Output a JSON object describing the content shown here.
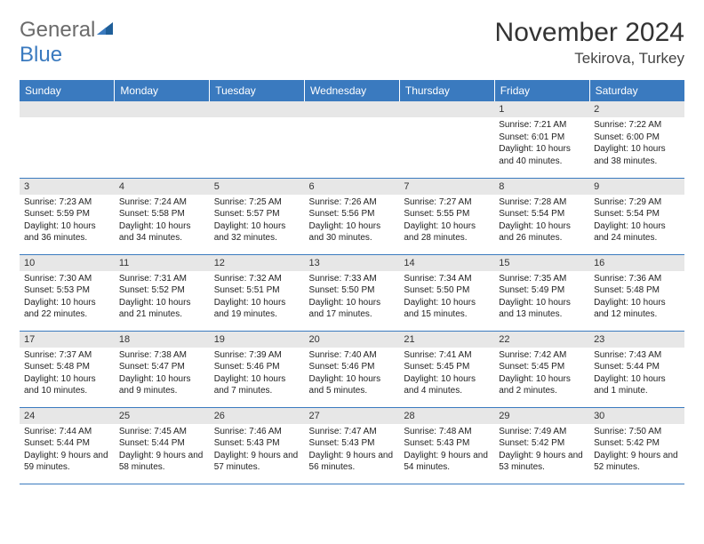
{
  "logo": {
    "word1": "General",
    "word2": "Blue",
    "color1": "#6b6b6b",
    "color2": "#3a7abf"
  },
  "title": "November 2024",
  "subtitle": "Tekirova, Turkey",
  "calendar": {
    "type": "table",
    "header_bg": "#3a7abf",
    "header_fg": "#ffffff",
    "daynum_bg": "#e7e7e7",
    "border_color": "#3a7abf",
    "columns": [
      "Sunday",
      "Monday",
      "Tuesday",
      "Wednesday",
      "Thursday",
      "Friday",
      "Saturday"
    ],
    "weeks": [
      [
        null,
        null,
        null,
        null,
        null,
        {
          "n": "1",
          "sunrise": "Sunrise: 7:21 AM",
          "sunset": "Sunset: 6:01 PM",
          "daylight": "Daylight: 10 hours and 40 minutes."
        },
        {
          "n": "2",
          "sunrise": "Sunrise: 7:22 AM",
          "sunset": "Sunset: 6:00 PM",
          "daylight": "Daylight: 10 hours and 38 minutes."
        }
      ],
      [
        {
          "n": "3",
          "sunrise": "Sunrise: 7:23 AM",
          "sunset": "Sunset: 5:59 PM",
          "daylight": "Daylight: 10 hours and 36 minutes."
        },
        {
          "n": "4",
          "sunrise": "Sunrise: 7:24 AM",
          "sunset": "Sunset: 5:58 PM",
          "daylight": "Daylight: 10 hours and 34 minutes."
        },
        {
          "n": "5",
          "sunrise": "Sunrise: 7:25 AM",
          "sunset": "Sunset: 5:57 PM",
          "daylight": "Daylight: 10 hours and 32 minutes."
        },
        {
          "n": "6",
          "sunrise": "Sunrise: 7:26 AM",
          "sunset": "Sunset: 5:56 PM",
          "daylight": "Daylight: 10 hours and 30 minutes."
        },
        {
          "n": "7",
          "sunrise": "Sunrise: 7:27 AM",
          "sunset": "Sunset: 5:55 PM",
          "daylight": "Daylight: 10 hours and 28 minutes."
        },
        {
          "n": "8",
          "sunrise": "Sunrise: 7:28 AM",
          "sunset": "Sunset: 5:54 PM",
          "daylight": "Daylight: 10 hours and 26 minutes."
        },
        {
          "n": "9",
          "sunrise": "Sunrise: 7:29 AM",
          "sunset": "Sunset: 5:54 PM",
          "daylight": "Daylight: 10 hours and 24 minutes."
        }
      ],
      [
        {
          "n": "10",
          "sunrise": "Sunrise: 7:30 AM",
          "sunset": "Sunset: 5:53 PM",
          "daylight": "Daylight: 10 hours and 22 minutes."
        },
        {
          "n": "11",
          "sunrise": "Sunrise: 7:31 AM",
          "sunset": "Sunset: 5:52 PM",
          "daylight": "Daylight: 10 hours and 21 minutes."
        },
        {
          "n": "12",
          "sunrise": "Sunrise: 7:32 AM",
          "sunset": "Sunset: 5:51 PM",
          "daylight": "Daylight: 10 hours and 19 minutes."
        },
        {
          "n": "13",
          "sunrise": "Sunrise: 7:33 AM",
          "sunset": "Sunset: 5:50 PM",
          "daylight": "Daylight: 10 hours and 17 minutes."
        },
        {
          "n": "14",
          "sunrise": "Sunrise: 7:34 AM",
          "sunset": "Sunset: 5:50 PM",
          "daylight": "Daylight: 10 hours and 15 minutes."
        },
        {
          "n": "15",
          "sunrise": "Sunrise: 7:35 AM",
          "sunset": "Sunset: 5:49 PM",
          "daylight": "Daylight: 10 hours and 13 minutes."
        },
        {
          "n": "16",
          "sunrise": "Sunrise: 7:36 AM",
          "sunset": "Sunset: 5:48 PM",
          "daylight": "Daylight: 10 hours and 12 minutes."
        }
      ],
      [
        {
          "n": "17",
          "sunrise": "Sunrise: 7:37 AM",
          "sunset": "Sunset: 5:48 PM",
          "daylight": "Daylight: 10 hours and 10 minutes."
        },
        {
          "n": "18",
          "sunrise": "Sunrise: 7:38 AM",
          "sunset": "Sunset: 5:47 PM",
          "daylight": "Daylight: 10 hours and 9 minutes."
        },
        {
          "n": "19",
          "sunrise": "Sunrise: 7:39 AM",
          "sunset": "Sunset: 5:46 PM",
          "daylight": "Daylight: 10 hours and 7 minutes."
        },
        {
          "n": "20",
          "sunrise": "Sunrise: 7:40 AM",
          "sunset": "Sunset: 5:46 PM",
          "daylight": "Daylight: 10 hours and 5 minutes."
        },
        {
          "n": "21",
          "sunrise": "Sunrise: 7:41 AM",
          "sunset": "Sunset: 5:45 PM",
          "daylight": "Daylight: 10 hours and 4 minutes."
        },
        {
          "n": "22",
          "sunrise": "Sunrise: 7:42 AM",
          "sunset": "Sunset: 5:45 PM",
          "daylight": "Daylight: 10 hours and 2 minutes."
        },
        {
          "n": "23",
          "sunrise": "Sunrise: 7:43 AM",
          "sunset": "Sunset: 5:44 PM",
          "daylight": "Daylight: 10 hours and 1 minute."
        }
      ],
      [
        {
          "n": "24",
          "sunrise": "Sunrise: 7:44 AM",
          "sunset": "Sunset: 5:44 PM",
          "daylight": "Daylight: 9 hours and 59 minutes."
        },
        {
          "n": "25",
          "sunrise": "Sunrise: 7:45 AM",
          "sunset": "Sunset: 5:44 PM",
          "daylight": "Daylight: 9 hours and 58 minutes."
        },
        {
          "n": "26",
          "sunrise": "Sunrise: 7:46 AM",
          "sunset": "Sunset: 5:43 PM",
          "daylight": "Daylight: 9 hours and 57 minutes."
        },
        {
          "n": "27",
          "sunrise": "Sunrise: 7:47 AM",
          "sunset": "Sunset: 5:43 PM",
          "daylight": "Daylight: 9 hours and 56 minutes."
        },
        {
          "n": "28",
          "sunrise": "Sunrise: 7:48 AM",
          "sunset": "Sunset: 5:43 PM",
          "daylight": "Daylight: 9 hours and 54 minutes."
        },
        {
          "n": "29",
          "sunrise": "Sunrise: 7:49 AM",
          "sunset": "Sunset: 5:42 PM",
          "daylight": "Daylight: 9 hours and 53 minutes."
        },
        {
          "n": "30",
          "sunrise": "Sunrise: 7:50 AM",
          "sunset": "Sunset: 5:42 PM",
          "daylight": "Daylight: 9 hours and 52 minutes."
        }
      ]
    ]
  }
}
